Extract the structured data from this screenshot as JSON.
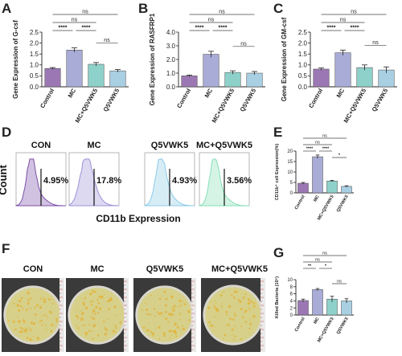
{
  "colors": {
    "control": "#9b78b4",
    "mc": "#a9acd6",
    "mc_q5": "#8ed1ca",
    "q5": "#a9cfe3",
    "flow_con": "#7b4fa8",
    "flow_mc": "#9c93d6",
    "flow_q5": "#8ccbe6",
    "flow_mcq5": "#86dfb8",
    "plate_bg": "#3a3a3a",
    "agar": "#d6d08a",
    "colony": "#e2b540"
  },
  "panels": {
    "A": "A",
    "B": "B",
    "C": "C",
    "D": "D",
    "E": "E",
    "F": "F",
    "G": "G"
  },
  "flow": {
    "labels": [
      "CON",
      "MC",
      "Q5VWK5",
      "MC+Q5VWK5"
    ],
    "percents": [
      "4.95%",
      "17.8%",
      "4.93%",
      "3.56%"
    ],
    "xlabel": "CD11b Expression",
    "ylabel": "Count"
  },
  "plates": {
    "labels": [
      "CON",
      "MC",
      "Q5VWK5",
      "MC+Q5VWK5"
    ]
  },
  "chart_data": [
    {
      "type": "bar",
      "panel": "A",
      "categories": [
        "Control",
        "MC",
        "MC+Q5VWK5",
        "Q5VWK5"
      ],
      "values": [
        0.84,
        1.68,
        1.03,
        0.73
      ],
      "errors": [
        0.04,
        0.1,
        0.08,
        0.06
      ],
      "ylabel": "Gene Expression of G-csf",
      "ylim": [
        0,
        2.5
      ],
      "yticks": [
        0.0,
        0.5,
        1.0,
        1.5,
        2.0,
        2.5
      ],
      "comparisons": [
        {
          "a": 0,
          "b": 1,
          "label": "****"
        },
        {
          "a": 1,
          "b": 2,
          "label": "****"
        },
        {
          "a": 2,
          "b": 3,
          "label": "ns"
        },
        {
          "a": 0,
          "b": 2,
          "label": "ns"
        },
        {
          "a": 0,
          "b": 3,
          "label": "ns"
        }
      ]
    },
    {
      "type": "bar",
      "panel": "B",
      "categories": [
        "Control",
        "MC",
        "MC+Q5VWK5",
        "Q5VWK5"
      ],
      "values": [
        0.8,
        2.38,
        1.05,
        1.0
      ],
      "errors": [
        0.06,
        0.22,
        0.12,
        0.12
      ],
      "ylabel": "Gene Expression of RASFRP1",
      "ylim": [
        0,
        4
      ],
      "yticks": [
        0,
        1,
        2,
        3,
        4
      ],
      "comparisons": [
        {
          "a": 0,
          "b": 1,
          "label": "****"
        },
        {
          "a": 1,
          "b": 2,
          "label": "****"
        },
        {
          "a": 2,
          "b": 3,
          "label": "ns"
        },
        {
          "a": 0,
          "b": 2,
          "label": "ns"
        },
        {
          "a": 0,
          "b": 3,
          "label": "ns"
        }
      ]
    },
    {
      "type": "bar",
      "panel": "C",
      "categories": [
        "Control",
        "MC",
        "MC+Q5VWK5",
        "Q5VWK5"
      ],
      "values": [
        0.81,
        1.56,
        0.88,
        0.77
      ],
      "errors": [
        0.05,
        0.12,
        0.12,
        0.14
      ],
      "ylabel": "Gene Expression of GM-csf",
      "ylim": [
        0,
        2.5
      ],
      "yticks": [
        0.0,
        0.5,
        1.0,
        1.5,
        2.0,
        2.5
      ],
      "comparisons": [
        {
          "a": 0,
          "b": 1,
          "label": "****"
        },
        {
          "a": 1,
          "b": 2,
          "label": "****"
        },
        {
          "a": 2,
          "b": 3,
          "label": "ns"
        },
        {
          "a": 0,
          "b": 2,
          "label": "ns"
        },
        {
          "a": 0,
          "b": 3,
          "label": "ns"
        }
      ]
    },
    {
      "type": "bar",
      "panel": "E",
      "categories": [
        "Control",
        "MC",
        "MC+Q5VWK5",
        "Q5VWK5"
      ],
      "values": [
        4.6,
        17.3,
        5.7,
        3.1
      ],
      "errors": [
        0.4,
        0.8,
        0.3,
        0.3
      ],
      "ylabel": "CD11b⁺ cell Expression(%)",
      "ylim": [
        0,
        20
      ],
      "yticks": [
        0,
        5,
        10,
        15,
        20
      ],
      "comparisons": [
        {
          "a": 0,
          "b": 1,
          "label": "****"
        },
        {
          "a": 1,
          "b": 2,
          "label": "****"
        },
        {
          "a": 2,
          "b": 3,
          "label": "*"
        },
        {
          "a": 0,
          "b": 2,
          "label": "ns"
        },
        {
          "a": 0,
          "b": 3,
          "label": "ns"
        }
      ]
    },
    {
      "type": "bar",
      "panel": "G",
      "categories": [
        "Control",
        "MC",
        "MC+Q5VWK5",
        "Q5VWK5"
      ],
      "values": [
        4.1,
        7.2,
        4.5,
        4.0
      ],
      "errors": [
        0.4,
        0.3,
        0.8,
        0.6
      ],
      "ylabel": "Killed Bacteria (10⁵)",
      "ylim": [
        0,
        10
      ],
      "yticks": [
        0,
        2,
        4,
        6,
        8,
        10
      ],
      "comparisons": [
        {
          "a": 0,
          "b": 1,
          "label": "**"
        },
        {
          "a": 1,
          "b": 2,
          "label": "*"
        },
        {
          "a": 2,
          "b": 3,
          "label": "ns"
        },
        {
          "a": 0,
          "b": 2,
          "label": "ns"
        },
        {
          "a": 0,
          "b": 3,
          "label": "ns"
        }
      ]
    }
  ]
}
